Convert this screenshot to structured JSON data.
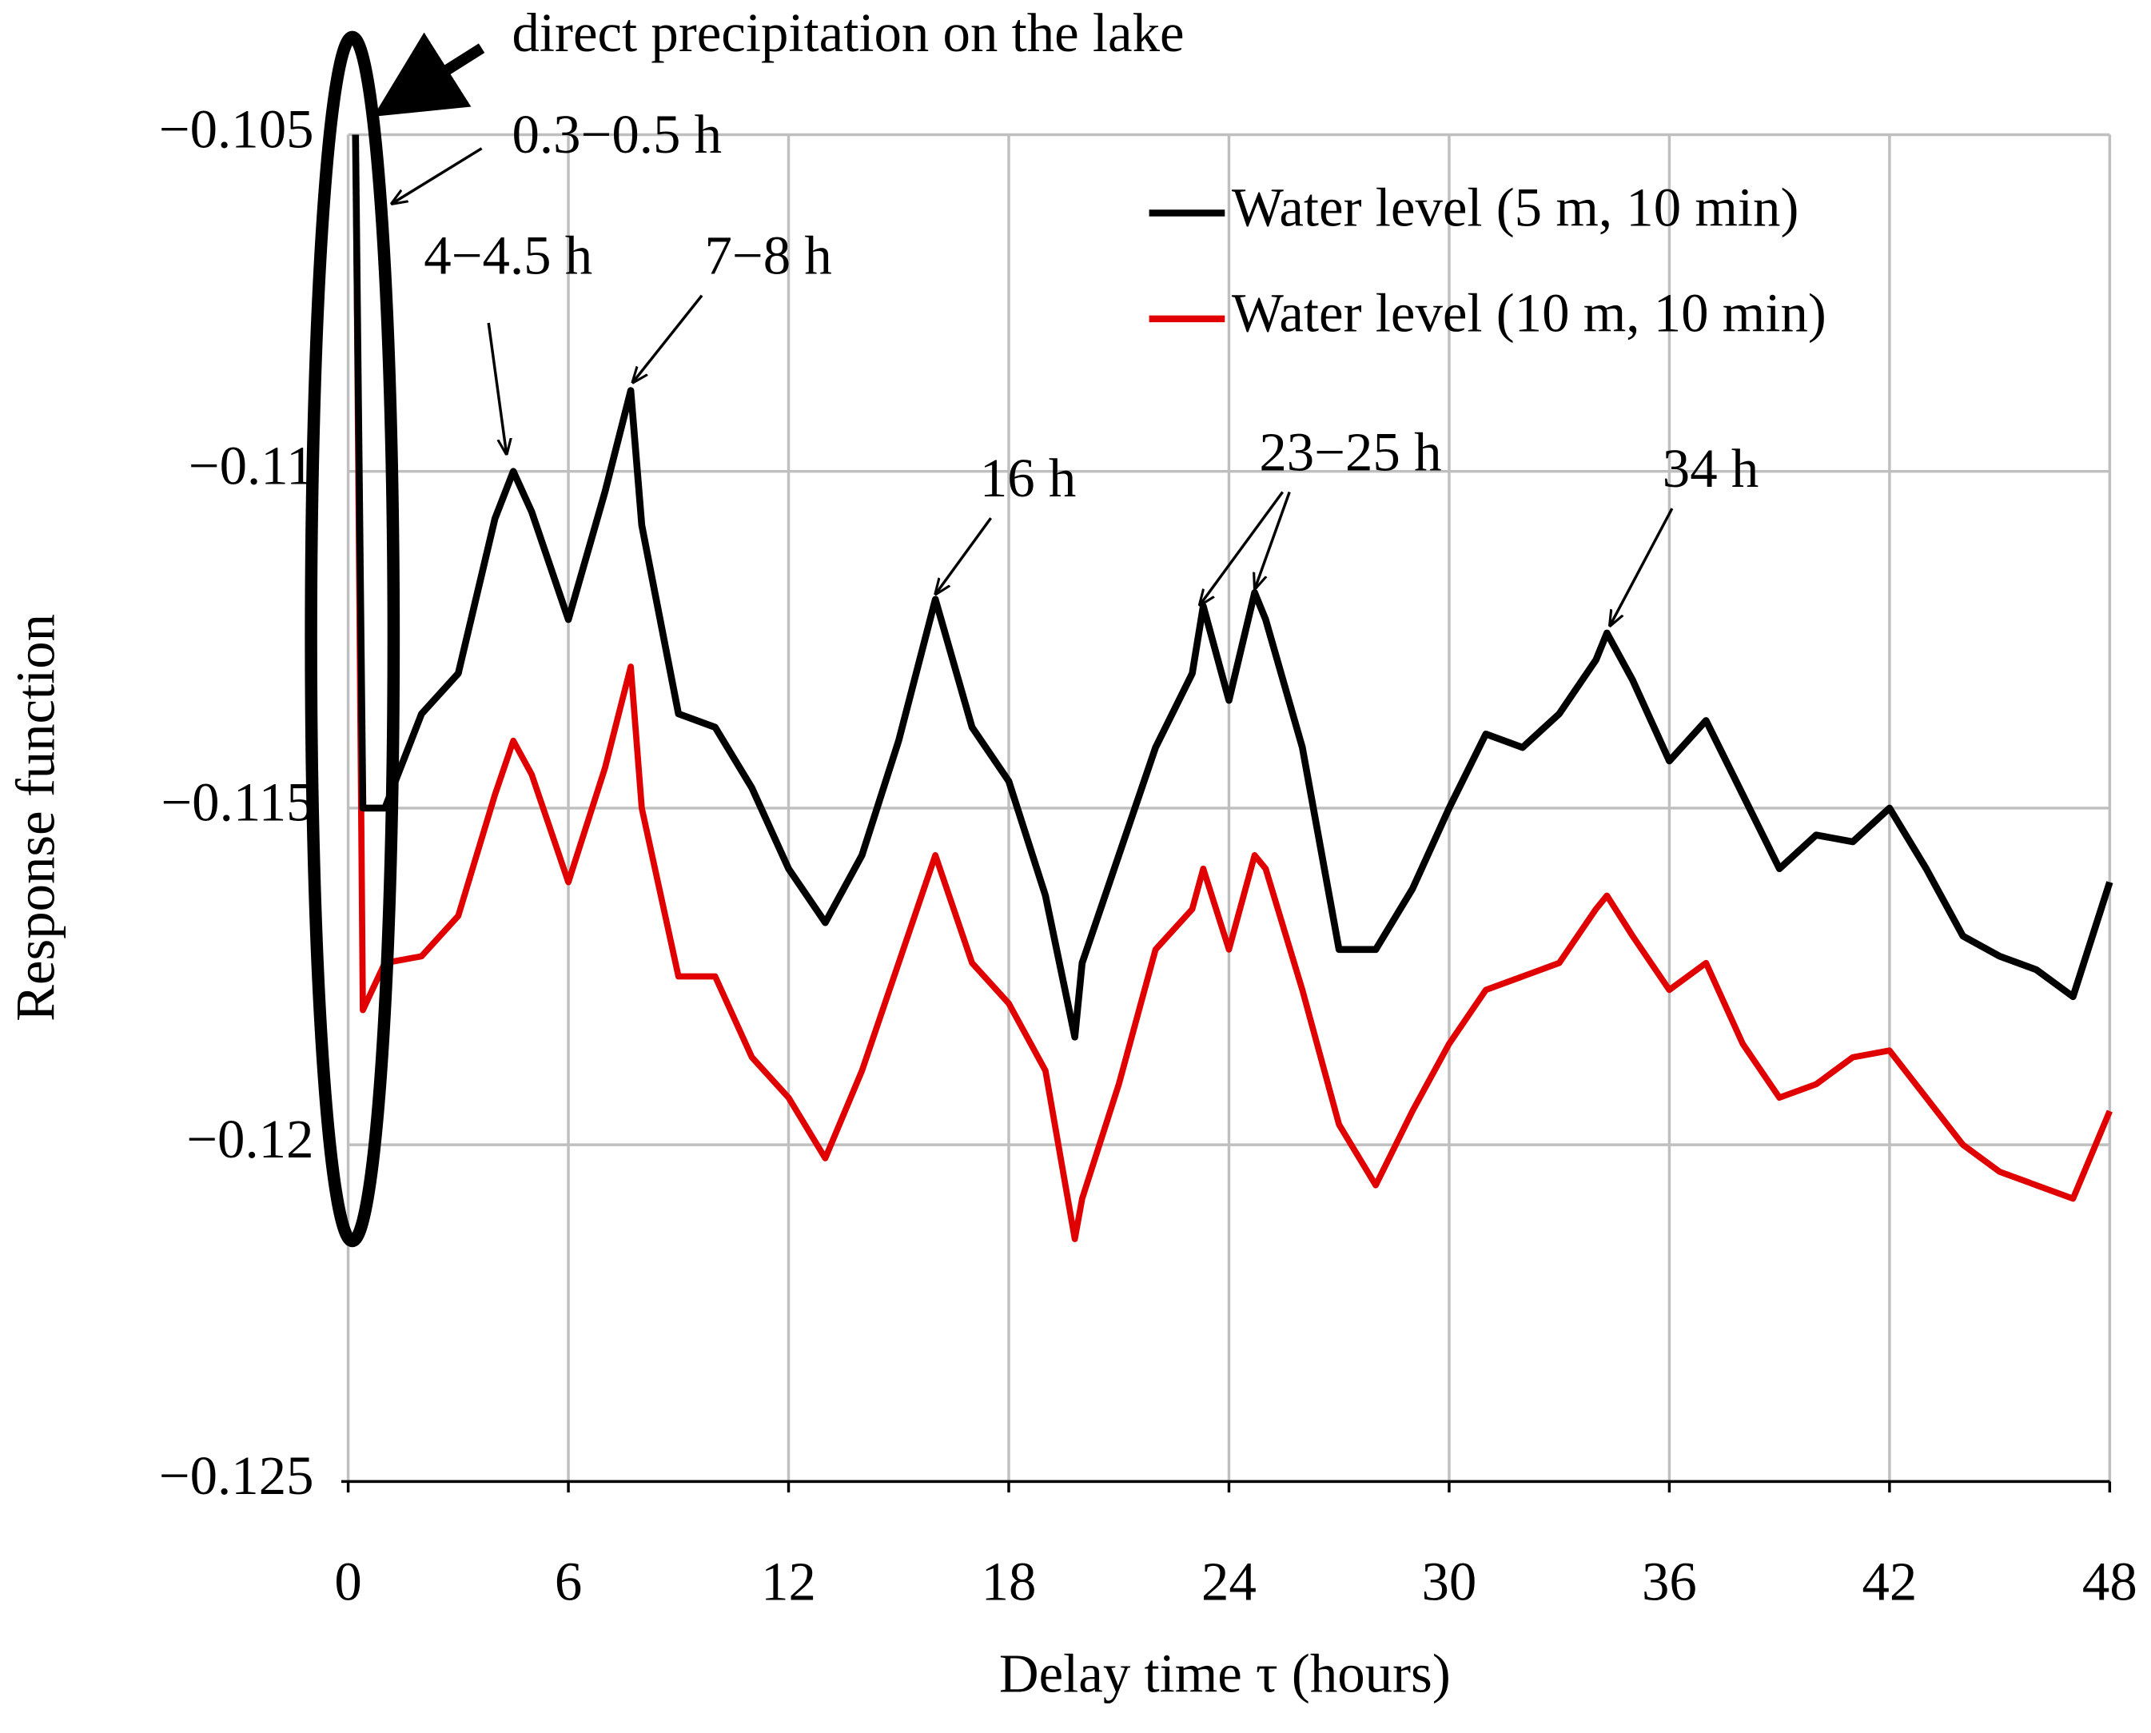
{
  "chart_data": {
    "type": "line",
    "x_label": "Delay time τ (hours)",
    "y_label": "Response function",
    "x": [
      0.2,
      0.4,
      1,
      2,
      3,
      4,
      4.5,
      5,
      6,
      7,
      7.7,
      8,
      9,
      10,
      11,
      12,
      13,
      14,
      15,
      16,
      17,
      18,
      19,
      19.8,
      20,
      21,
      22,
      23,
      23.3,
      24,
      24.7,
      25,
      26,
      27,
      28,
      29,
      30,
      31,
      32,
      33,
      34,
      34.3,
      35,
      36,
      37,
      38,
      39,
      40,
      41,
      42,
      43,
      44,
      45,
      46,
      47,
      48
    ],
    "series": [
      {
        "name": "Water level (5 m, 10 min)",
        "color": "#000000",
        "values": [
          -0.105,
          -0.115,
          -0.115,
          -0.1136,
          -0.113,
          -0.1107,
          -0.11,
          -0.1106,
          -0.1122,
          -0.1103,
          -0.1088,
          -0.1108,
          -0.1136,
          -0.1138,
          -0.1147,
          -0.1159,
          -0.1167,
          -0.1157,
          -0.114,
          -0.1119,
          -0.1138,
          -0.1146,
          -0.1163,
          -0.1184,
          -0.1173,
          -0.1157,
          -0.1141,
          -0.113,
          -0.112,
          -0.1134,
          -0.1118,
          -0.1122,
          -0.1141,
          -0.1171,
          -0.1171,
          -0.1162,
          -0.115,
          -0.1139,
          -0.1141,
          -0.1136,
          -0.1128,
          -0.1124,
          -0.1131,
          -0.1143,
          -0.1137,
          -0.1148,
          -0.1159,
          -0.1154,
          -0.1155,
          -0.115,
          -0.1159,
          -0.1169,
          -0.1172,
          -0.1174,
          -0.1178,
          -0.1161
        ]
      },
      {
        "name": "Water level (10 m, 10 min)",
        "color": "#e00000",
        "values": [
          -0.105,
          -0.118,
          -0.1173,
          -0.1172,
          -0.1166,
          -0.1148,
          -0.114,
          -0.1145,
          -0.1161,
          -0.1144,
          -0.1129,
          -0.115,
          -0.1175,
          -0.1175,
          -0.1187,
          -0.1193,
          -0.1202,
          -0.1189,
          -0.1173,
          -0.1157,
          -0.1173,
          -0.1179,
          -0.1189,
          -0.1214,
          -0.1208,
          -0.1191,
          -0.1171,
          -0.1165,
          -0.1159,
          -0.1171,
          -0.1157,
          -0.1159,
          -0.1177,
          -0.1197,
          -0.1206,
          -0.1195,
          -0.1185,
          -0.1177,
          -0.1175,
          -0.1173,
          -0.1165,
          -0.1163,
          -0.1169,
          -0.1177,
          -0.1173,
          -0.1185,
          -0.1193,
          -0.1191,
          -0.1187,
          -0.1186,
          -0.1193,
          -0.12,
          -0.1204,
          -0.1206,
          -0.1208,
          -0.1195
        ]
      }
    ],
    "xlim": [
      0,
      48
    ],
    "xticks": [
      0,
      6,
      12,
      18,
      24,
      30,
      36,
      42,
      48
    ],
    "ylim": [
      -0.125,
      -0.105
    ],
    "yticks": [
      {
        "value": -0.125,
        "label": "−0.125"
      },
      {
        "value": -0.12,
        "label": "−0.12"
      },
      {
        "value": -0.115,
        "label": "−0.115"
      },
      {
        "value": -0.11,
        "label": "−0.11"
      },
      {
        "value": -0.105,
        "label": "−0.105"
      }
    ],
    "grid": true,
    "legend": "upper right",
    "annotations": [
      "direct precipitation on the lake",
      "0.3−0.5 h",
      "4−4.5 h",
      "7−8 h",
      "16 h",
      "23−25 h",
      "34 h"
    ]
  }
}
